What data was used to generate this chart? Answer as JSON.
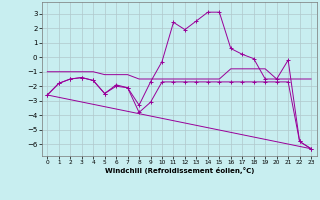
{
  "xlabel": "Windchill (Refroidissement éolien,°C)",
  "bg_color": "#c8eef0",
  "grid_color": "#b0c8cc",
  "line_color": "#990099",
  "xlim": [
    -0.5,
    23.5
  ],
  "ylim": [
    -6.8,
    3.8
  ],
  "yticks": [
    -6,
    -5,
    -4,
    -3,
    -2,
    -1,
    0,
    1,
    2,
    3
  ],
  "xticks": [
    0,
    1,
    2,
    3,
    4,
    5,
    6,
    7,
    8,
    9,
    10,
    11,
    12,
    13,
    14,
    15,
    16,
    17,
    18,
    19,
    20,
    21,
    22,
    23
  ],
  "series1_x": [
    0,
    1,
    2,
    3,
    4,
    5,
    6,
    7,
    8,
    9,
    10,
    11,
    12,
    13,
    14,
    15,
    16,
    17,
    18,
    19,
    20,
    21,
    22,
    23
  ],
  "series1_y": [
    -2.6,
    -1.8,
    -1.5,
    -1.4,
    -1.6,
    -2.5,
    -1.9,
    -2.1,
    -3.3,
    -1.7,
    -0.3,
    2.4,
    1.9,
    2.5,
    3.1,
    3.1,
    0.6,
    0.2,
    -0.1,
    -1.5,
    -1.5,
    -0.2,
    -5.8,
    -6.3
  ],
  "series2_x": [
    0,
    1,
    2,
    3,
    4,
    5,
    6,
    7,
    8,
    9,
    10,
    11,
    12,
    13,
    14,
    15,
    16,
    17,
    18,
    19,
    20,
    21,
    22,
    23
  ],
  "series2_y": [
    -1.0,
    -1.0,
    -1.0,
    -1.0,
    -1.0,
    -1.2,
    -1.2,
    -1.2,
    -1.5,
    -1.5,
    -1.5,
    -1.5,
    -1.5,
    -1.5,
    -1.5,
    -1.5,
    -0.8,
    -0.8,
    -0.8,
    -0.8,
    -1.5,
    -1.5,
    -1.5,
    -1.5
  ],
  "series3_x": [
    0,
    1,
    2,
    3,
    4,
    5,
    6,
    7,
    8,
    9,
    10,
    11,
    12,
    13,
    14,
    15,
    16,
    17,
    18,
    19,
    20,
    21,
    22,
    23
  ],
  "series3_y": [
    -2.6,
    -1.8,
    -1.5,
    -1.4,
    -1.6,
    -2.5,
    -2.0,
    -2.1,
    -3.8,
    -3.1,
    -1.7,
    -1.7,
    -1.7,
    -1.7,
    -1.7,
    -1.7,
    -1.7,
    -1.7,
    -1.7,
    -1.7,
    -1.7,
    -1.7,
    -5.8,
    -6.3
  ],
  "series4_x": [
    0,
    23
  ],
  "series4_y": [
    -2.6,
    -6.3
  ]
}
